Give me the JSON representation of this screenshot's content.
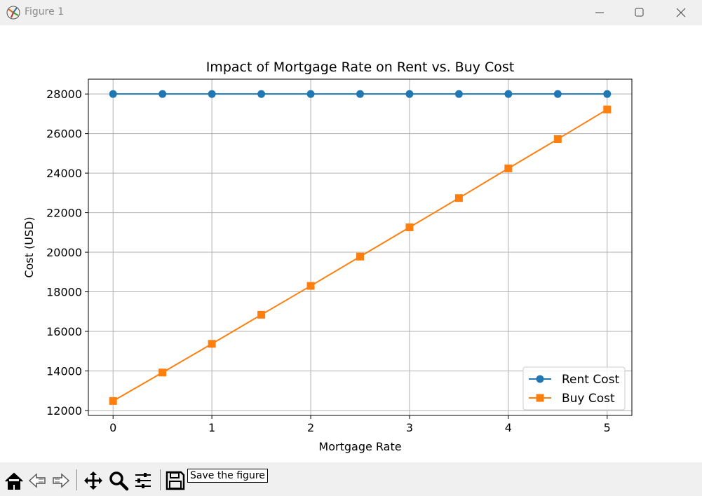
{
  "window": {
    "title": "Figure 1"
  },
  "toolbar": {
    "buttons": [
      "home-icon",
      "back-arrow-icon",
      "forward-arrow-icon",
      "pan-icon",
      "zoom-icon",
      "configure-subplots-icon",
      "save-icon"
    ],
    "tooltip": "Save the figure"
  },
  "colors": {
    "rent": "#1f77b4",
    "buy": "#ff7f0e",
    "grid": "#b0b0b0",
    "toolbar_bg": "#f0f0f0"
  },
  "chart_data": {
    "type": "line",
    "title": "Impact of Mortgage Rate on Rent vs. Buy Cost",
    "xlabel": "Mortgage Rate",
    "ylabel": "Cost (USD)",
    "x": [
      0,
      0.5,
      1,
      1.5,
      2,
      2.5,
      3,
      3.5,
      4,
      4.5,
      5
    ],
    "xticks": [
      "0",
      "1",
      "2",
      "3",
      "4",
      "5"
    ],
    "xtick_values": [
      0,
      1,
      2,
      3,
      4,
      5
    ],
    "yticks": [
      "12000",
      "14000",
      "16000",
      "18000",
      "20000",
      "22000",
      "24000",
      "26000",
      "28000"
    ],
    "ytick_values": [
      12000,
      14000,
      16000,
      18000,
      20000,
      22000,
      24000,
      26000,
      28000
    ],
    "xlim": [
      -0.25,
      5.25
    ],
    "ylim": [
      11750,
      28750
    ],
    "grid": true,
    "legend_position": "lower-right",
    "series": [
      {
        "name": "Rent Cost",
        "marker": "circle",
        "color": "#1f77b4",
        "values": [
          28000,
          28000,
          28000,
          28000,
          28000,
          28000,
          28000,
          28000,
          28000,
          28000,
          28000
        ]
      },
      {
        "name": "Buy Cost",
        "marker": "square",
        "color": "#ff7f0e",
        "values": [
          12480,
          13920,
          15370,
          16840,
          18300,
          19780,
          21260,
          22740,
          24240,
          25720,
          27220
        ]
      }
    ]
  }
}
